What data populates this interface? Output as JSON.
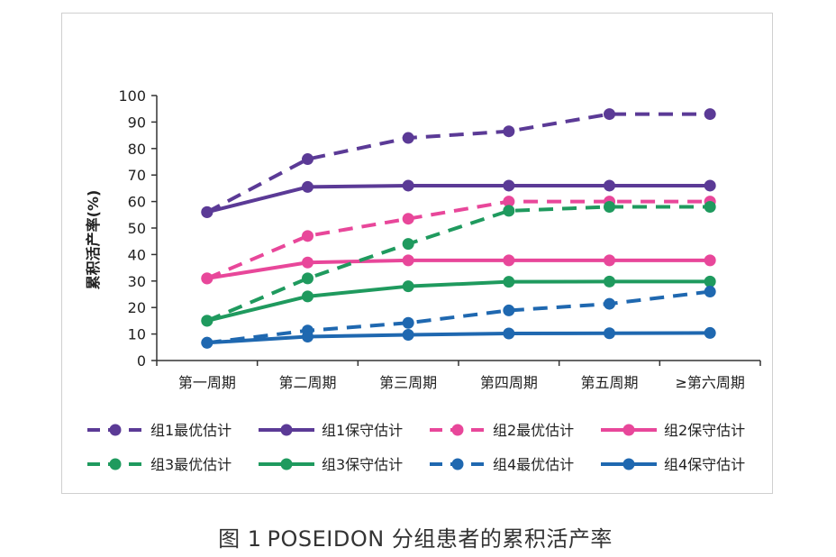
{
  "chart_data": {
    "type": "line",
    "title": "",
    "xlabel": "",
    "ylabel": "累积活产率(%)",
    "ylim": [
      0,
      100
    ],
    "yticks": [
      0,
      10,
      20,
      30,
      40,
      50,
      60,
      70,
      80,
      90,
      100
    ],
    "categories": [
      "第一周期",
      "第二周期",
      "第三周期",
      "第四周期",
      "第五周期",
      "≥第六周期"
    ],
    "legend_position": "bottom",
    "grid": false,
    "series": [
      {
        "name": "组1最优估计",
        "color": "#5b3a96",
        "style": "dashed",
        "values": [
          56,
          76,
          84,
          86.5,
          93,
          93
        ]
      },
      {
        "name": "组1保守估计",
        "color": "#5b3a96",
        "style": "solid",
        "values": [
          56,
          65.5,
          66,
          66,
          66,
          66
        ]
      },
      {
        "name": "组2最优估计",
        "color": "#e8479a",
        "style": "dashed",
        "values": [
          31,
          47,
          53.5,
          60,
          60,
          60
        ]
      },
      {
        "name": "组2保守估计",
        "color": "#e8479a",
        "style": "solid",
        "values": [
          31,
          37,
          37.8,
          37.8,
          37.8,
          37.8
        ]
      },
      {
        "name": "组3最优估计",
        "color": "#1f9a5e",
        "style": "dashed",
        "values": [
          15,
          31,
          44,
          56.5,
          58,
          58
        ]
      },
      {
        "name": "组3保守估计",
        "color": "#1f9a5e",
        "style": "solid",
        "values": [
          15,
          24.2,
          28,
          29.7,
          29.8,
          29.8
        ]
      },
      {
        "name": "组4最优估计",
        "color": "#1f68b0",
        "style": "dashed",
        "values": [
          6.7,
          11.3,
          14.2,
          18.9,
          21.4,
          26
        ]
      },
      {
        "name": "组4保守估计",
        "color": "#1f68b0",
        "style": "solid",
        "values": [
          6.7,
          9,
          9.7,
          10.2,
          10.3,
          10.4
        ]
      }
    ]
  },
  "caption": {
    "label": "图 1",
    "text": "POSEIDON  分组患者的累积活产率"
  }
}
